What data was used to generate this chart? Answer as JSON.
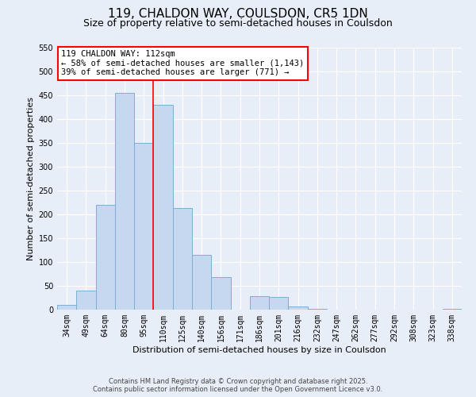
{
  "title": "119, CHALDON WAY, COULSDON, CR5 1DN",
  "subtitle": "Size of property relative to semi-detached houses in Coulsdon",
  "xlabel": "Distribution of semi-detached houses by size in Coulsdon",
  "ylabel": "Number of semi-detached properties",
  "bin_labels": [
    "34sqm",
    "49sqm",
    "64sqm",
    "80sqm",
    "95sqm",
    "110sqm",
    "125sqm",
    "140sqm",
    "156sqm",
    "171sqm",
    "186sqm",
    "201sqm",
    "216sqm",
    "232sqm",
    "247sqm",
    "262sqm",
    "277sqm",
    "292sqm",
    "308sqm",
    "323sqm",
    "338sqm"
  ],
  "bar_values": [
    10,
    40,
    220,
    455,
    350,
    430,
    213,
    115,
    68,
    0,
    28,
    27,
    7,
    2,
    0,
    0,
    0,
    0,
    0,
    0,
    2
  ],
  "bar_color": "#c5d8f0",
  "bar_edge_color": "#7bafd4",
  "vline_color": "red",
  "annotation_title": "119 CHALDON WAY: 112sqm",
  "annotation_line1": "← 58% of semi-detached houses are smaller (1,143)",
  "annotation_line2": "39% of semi-detached houses are larger (771) →",
  "ylim": [
    0,
    550
  ],
  "yticks": [
    0,
    50,
    100,
    150,
    200,
    250,
    300,
    350,
    400,
    450,
    500,
    550
  ],
  "footer_line1": "Contains HM Land Registry data © Crown copyright and database right 2025.",
  "footer_line2": "Contains public sector information licensed under the Open Government Licence v3.0.",
  "bg_color": "#e8eef8",
  "grid_color": "#ffffff",
  "title_fontsize": 11,
  "subtitle_fontsize": 9,
  "axis_label_fontsize": 8,
  "tick_fontsize": 7,
  "annotation_fontsize": 7.5,
  "footer_fontsize": 6
}
